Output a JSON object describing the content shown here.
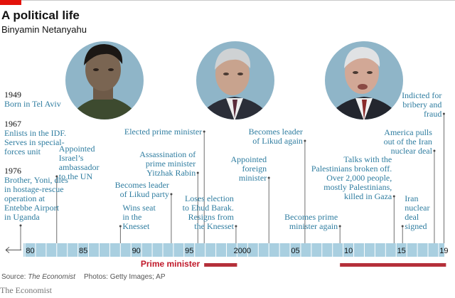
{
  "header": {
    "title": "A political life",
    "subtitle": "Binyamin Netanyahu"
  },
  "footer": {
    "source_prefix": "Source: ",
    "source_name": "The Economist",
    "photos": "Photos: Getty Images; AP",
    "brand": "The Economist"
  },
  "colors": {
    "accent_red": "#e3120b",
    "pm_bar": "#b5303a",
    "axis_fill": "#a9cfe0",
    "event_text": "#2f7da0",
    "photo_bg": "#8fb5c8"
  },
  "photos": [
    "portrait-young",
    "portrait-middle",
    "portrait-older"
  ],
  "chart_data": {
    "type": "timeline",
    "title": "A political life",
    "subtitle": "Binyamin Netanyahu",
    "x_range": [
      1978,
      2019
    ],
    "tick_labels": [
      {
        "year": 1980,
        "label": "80"
      },
      {
        "year": 1985,
        "label": "85"
      },
      {
        "year": 1990,
        "label": "90"
      },
      {
        "year": 1995,
        "label": "95"
      },
      {
        "year": 2000,
        "label": "2000"
      },
      {
        "year": 2005,
        "label": "05"
      },
      {
        "year": 2010,
        "label": "10"
      },
      {
        "year": 2015,
        "label": "15"
      },
      {
        "year": 2019,
        "label": "19"
      }
    ],
    "early_events": [
      {
        "year_label": "1949",
        "lines": [
          "Born in Tel Aviv"
        ]
      },
      {
        "year_label": "1967",
        "lines": [
          "Enlists in the IDF.",
          "Serves in special-",
          "forces unit"
        ]
      },
      {
        "year_label": "1976",
        "lines": [
          "Brother, Yoni, dies",
          "in hostage-rescue",
          "operation at",
          "Entebbe Airport",
          "in Uganda"
        ]
      }
    ],
    "events": [
      {
        "year": 1982.5,
        "lines": [
          "Appointed",
          "Israel’s",
          "ambassador",
          "to the UN"
        ],
        "anchor": "start"
      },
      {
        "year": 1988.5,
        "lines": [
          "Wins seat",
          "in the",
          "Knesset"
        ],
        "anchor": "start"
      },
      {
        "year": 1993.3,
        "lines": [
          "Becomes leader",
          "of Likud party"
        ],
        "anchor": "end"
      },
      {
        "year": 1995.8,
        "lines": [
          "Assassination of",
          "prime minister",
          "Yitzhak Rabin"
        ],
        "anchor": "end"
      },
      {
        "year": 1996.4,
        "lines": [
          "Elected prime minister"
        ],
        "anchor": "end"
      },
      {
        "year": 1999.4,
        "lines": [
          "Loses election",
          "to Ehud Barak.",
          "Resigns from",
          "the Knesset"
        ],
        "anchor": "end"
      },
      {
        "year": 2002.5,
        "lines": [
          "Appointed",
          "foreign",
          "minister"
        ],
        "anchor": "end"
      },
      {
        "year": 2005.9,
        "lines": [
          "Becomes leader",
          "of Likud again"
        ],
        "anchor": "end"
      },
      {
        "year": 2009.2,
        "lines": [
          "Becomes prime",
          "minister again"
        ],
        "anchor": "end"
      },
      {
        "year": 2014.3,
        "lines": [
          "Talks with the",
          "Palestinians broken off.",
          "Over 2,000 people,",
          "mostly Palestinians,",
          "killed in Gaza"
        ],
        "anchor": "end"
      },
      {
        "year": 2015.1,
        "lines": [
          "Iran",
          "nuclear",
          "deal",
          "signed"
        ],
        "anchor": "start"
      },
      {
        "year": 2018.1,
        "lines": [
          "America pulls",
          "out of the Iran",
          "nuclear deal"
        ],
        "anchor": "end"
      },
      {
        "year": 2019.0,
        "lines": [
          "Indicted for",
          "bribery and",
          "fraud"
        ],
        "anchor": "end"
      }
    ],
    "pm_label": "Prime minister",
    "pm_periods": [
      [
        1996.4,
        1999.5
      ],
      [
        2009.2,
        2019.2
      ]
    ]
  }
}
